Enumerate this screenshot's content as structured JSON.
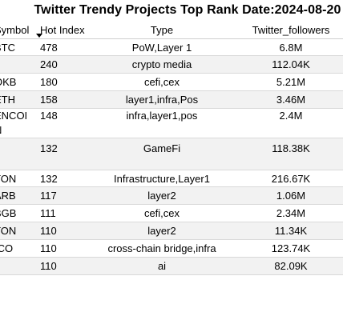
{
  "title": "Twitter Trendy Projects Top Rank Date:2024-08-20",
  "columns": {
    "symbol": "Symbol",
    "hot_index": "Hot Index",
    "type": "Type",
    "twitter_followers": "Twitter_followers"
  },
  "sort_icon": "sort-descending-icon",
  "colors": {
    "row_shade": "#f2f2f2",
    "divider": "#d9d9d9"
  },
  "rows": [
    {
      "symbol": "BTC",
      "hot_index": "478",
      "type": "PoW,Layer 1",
      "twitter_followers": "6.8M"
    },
    {
      "symbol": "",
      "hot_index": "240",
      "type": "crypto media",
      "twitter_followers": "112.04K"
    },
    {
      "symbol": "OKB",
      "hot_index": "180",
      "type": "cefi,cex",
      "twitter_followers": "5.21M"
    },
    {
      "symbol": "ETH",
      "hot_index": "158",
      "type": "layer1,infra,Pos",
      "twitter_followers": "3.46M"
    },
    {
      "symbol_line1": "ENCOI",
      "symbol_line2": "N",
      "hot_index": "148",
      "type": "infra,layer1,pos",
      "twitter_followers": "2.4M"
    },
    {
      "symbol": "",
      "hot_index": "132",
      "type": "GameFi",
      "twitter_followers": "118.38K"
    },
    {
      "symbol": "TON",
      "hot_index": "132",
      "type": "Infrastructure,Layer1",
      "twitter_followers": "216.67K"
    },
    {
      "symbol": "ARB",
      "hot_index": "117",
      "type": "layer2",
      "twitter_followers": "1.06M"
    },
    {
      "symbol": "BGB",
      "hot_index": "111",
      "type": "cefi,cex",
      "twitter_followers": "2.34M"
    },
    {
      "symbol": "TON",
      "hot_index": "110",
      "type": "layer2",
      "twitter_followers": "11.34K"
    },
    {
      "symbol": "ICO",
      "hot_index": "110",
      "type": "cross-chain bridge,infra",
      "twitter_followers": "123.74K"
    },
    {
      "symbol": "",
      "hot_index": "110",
      "type": "ai",
      "twitter_followers": "82.09K"
    }
  ]
}
